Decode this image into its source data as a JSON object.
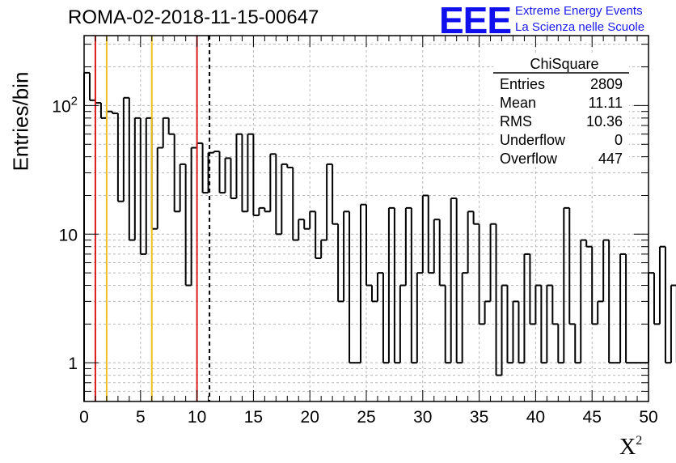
{
  "title": "ROMA-02-2018-11-15-00647",
  "logo": {
    "mark": "EEE",
    "line1": "Extreme Energy Events",
    "line2": "La Scienza nelle Scuole"
  },
  "stats": {
    "header": "ChiSquare",
    "rows": [
      {
        "label": "Entries",
        "value": "2809"
      },
      {
        "label": "Mean",
        "value": "11.11"
      },
      {
        "label": "RMS",
        "value": "10.36"
      },
      {
        "label": "Underflow",
        "value": "0"
      },
      {
        "label": "Overflow",
        "value": "447"
      }
    ]
  },
  "chart_data": {
    "type": "histogram",
    "title": "ROMA-02-2018-11-15-00647",
    "xlabel": "X",
    "xlabel_sup": "2",
    "ylabel": "Entries/bin",
    "xlim": [
      0,
      50
    ],
    "ylim": [
      0.5,
      350
    ],
    "yscale": "log",
    "bin_width": 0.5,
    "x_ticks": [
      0,
      5,
      10,
      15,
      20,
      25,
      30,
      35,
      40,
      45,
      50
    ],
    "x_tick_labels": [
      "0",
      "5",
      "10",
      "15",
      "20",
      "25",
      "30",
      "35",
      "40",
      "45",
      "50"
    ],
    "y_ticks": [
      1,
      10,
      100
    ],
    "y_tick_labels": [
      "1",
      "10",
      "10^2"
    ],
    "grid": true,
    "values": [
      180,
      110,
      105,
      80,
      90,
      87,
      18,
      115,
      9,
      80,
      7,
      80,
      11,
      47,
      80,
      60,
      15,
      35,
      4,
      47,
      51,
      21,
      43,
      44,
      21,
      39,
      19,
      60,
      15,
      60,
      14,
      16,
      15,
      42,
      10,
      35,
      33,
      9,
      13,
      11,
      15,
      6.5,
      9,
      35,
      12,
      3,
      15,
      1,
      1,
      17,
      4,
      3,
      5,
      1,
      16,
      1,
      4,
      16,
      1,
      5,
      20,
      5,
      13,
      4,
      1,
      19,
      1,
      5,
      15,
      12,
      2,
      3,
      12,
      0.8,
      4,
      1,
      3,
      1,
      7,
      2,
      4,
      1,
      4,
      2,
      1,
      16,
      2,
      1,
      9,
      8,
      2,
      3,
      9,
      1,
      1,
      7,
      1,
      1,
      1,
      1,
      5,
      2,
      8,
      1,
      4,
      1,
      8,
      1,
      1,
      3,
      7,
      10,
      7,
      1,
      2,
      1,
      3,
      2,
      1,
      5,
      1,
      2,
      4,
      1,
      1,
      1,
      2,
      3,
      1,
      1,
      3,
      1,
      1,
      2,
      3,
      1,
      3,
      2,
      1,
      1,
      2,
      2,
      1,
      1,
      2,
      1,
      1,
      1,
      1,
      2,
      1,
      1,
      3,
      1,
      2,
      1,
      1,
      2,
      1,
      2,
      1,
      1,
      2,
      2,
      1,
      1,
      1,
      2,
      1,
      1,
      2,
      1,
      1,
      1,
      1,
      1,
      1,
      2,
      1,
      1,
      1,
      1,
      1,
      1,
      2,
      1,
      1,
      1,
      1,
      1,
      1,
      1,
      1,
      1,
      1,
      1,
      1,
      1,
      1,
      1,
      1,
      1,
      1,
      1,
      1,
      1,
      1
    ],
    "vertical_lines": [
      {
        "x": 1,
        "color": "#dd1c1c",
        "style": "solid"
      },
      {
        "x": 2,
        "color": "#f0c020",
        "style": "solid"
      },
      {
        "x": 6,
        "color": "#f0c020",
        "style": "solid"
      },
      {
        "x": 10,
        "color": "#dd1c1c",
        "style": "solid"
      },
      {
        "x": 11.11,
        "color": "#000000",
        "style": "dashed"
      }
    ]
  }
}
